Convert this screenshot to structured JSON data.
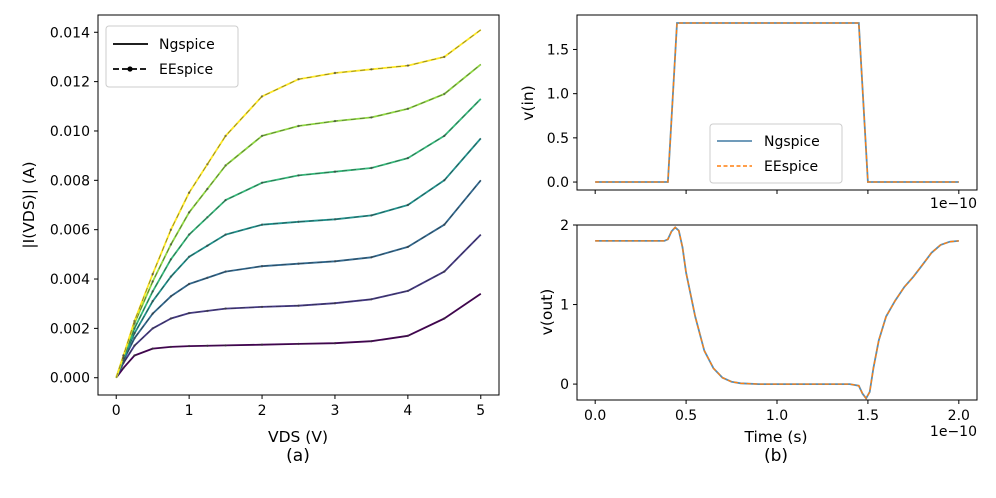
{
  "chart_data": [
    {
      "panel": "(a)",
      "type": "line",
      "xlabel": "VDS (V)",
      "ylabel": "|I(VDS)| (A)",
      "xlim": [
        -0.25,
        5.25
      ],
      "ylim": [
        -0.0007,
        0.0147
      ],
      "xticks": [
        0,
        1,
        2,
        3,
        4,
        5
      ],
      "xtick_labels": [
        "0",
        "1",
        "2",
        "3",
        "4",
        "5"
      ],
      "yticks": [
        0.0,
        0.002,
        0.004,
        0.006,
        0.008,
        0.01,
        0.012,
        0.014
      ],
      "ytick_labels": [
        "0.000",
        "0.002",
        "0.004",
        "0.006",
        "0.008",
        "0.010",
        "0.012",
        "0.014"
      ],
      "legend": {
        "placement": "top-left",
        "entries": [
          "Ngspice",
          "EEspice"
        ]
      },
      "grid": false,
      "x": [
        0,
        0.1,
        0.25,
        0.5,
        0.75,
        1.0,
        1.5,
        2.0,
        2.5,
        3.0,
        3.5,
        4.0,
        4.5,
        5.0
      ],
      "series": [
        {
          "color": "#440154",
          "values": [
            0,
            0.0004,
            0.0009,
            0.00118,
            0.00125,
            0.00128,
            0.00131,
            0.00134,
            0.00137,
            0.0014,
            0.00148,
            0.0017,
            0.0024,
            0.0034
          ]
        },
        {
          "color": "#443983",
          "values": [
            0,
            0.0006,
            0.0013,
            0.002,
            0.0024,
            0.00262,
            0.0028,
            0.00287,
            0.00292,
            0.00302,
            0.00318,
            0.00352,
            0.0043,
            0.0058
          ]
        },
        {
          "color": "#31688e",
          "values": [
            0,
            0.0007,
            0.0016,
            0.0026,
            0.0033,
            0.0038,
            0.0043,
            0.00452,
            0.00462,
            0.00472,
            0.00488,
            0.0053,
            0.0062,
            0.008
          ]
        },
        {
          "color": "#21918c",
          "values": [
            0,
            0.0008,
            0.0018,
            0.0031,
            0.0041,
            0.0049,
            0.0058,
            0.0062,
            0.00632,
            0.00642,
            0.00658,
            0.007,
            0.008,
            0.0097
          ]
        },
        {
          "color": "#35b779",
          "values": [
            0,
            0.0008,
            0.002,
            0.0035,
            0.0048,
            0.0058,
            0.0072,
            0.0079,
            0.0082,
            0.00835,
            0.0085,
            0.0089,
            0.0098,
            0.0113
          ]
        },
        {
          "color": "#90d743",
          "values": [
            0,
            0.0009,
            0.0022,
            0.0039,
            0.0054,
            0.0067,
            0.0086,
            0.0098,
            0.0102,
            0.0104,
            0.01055,
            0.0109,
            0.0115,
            0.0127
          ]
        },
        {
          "color": "#fde725",
          "values": [
            0,
            0.0009,
            0.0023,
            0.0042,
            0.006,
            0.0075,
            0.0098,
            0.0114,
            0.0121,
            0.01235,
            0.0125,
            0.01265,
            0.013,
            0.0141
          ]
        }
      ],
      "eespice_marker_x": [
        0.1,
        0.25,
        0.5,
        0.75,
        1.0,
        1.25,
        1.5,
        2.0,
        2.5,
        3.0,
        3.5,
        4.0,
        4.5
      ]
    },
    {
      "panel": "(b) top",
      "type": "line",
      "xlabel": "",
      "ylabel": "v(in)",
      "xlim": [
        -0.1,
        2.1
      ],
      "ylim": [
        -0.09,
        1.89
      ],
      "xticks": [
        0.0,
        0.5,
        1.0,
        1.5,
        2.0
      ],
      "xtick_labels": [],
      "x_offset_text": "1e−10",
      "yticks": [
        0.0,
        0.5,
        1.0,
        1.5
      ],
      "ytick_labels": [
        "0.0",
        "0.5",
        "1.0",
        "1.5"
      ],
      "legend": {
        "placement": "center",
        "entries": [
          "Ngspice",
          "EEspice"
        ]
      },
      "grid": false,
      "x": [
        0.0,
        0.4,
        0.45,
        1.45,
        1.5,
        2.0
      ],
      "series": [
        {
          "name": "Ngspice",
          "color": "#5b8db0",
          "values": [
            0,
            0,
            1.8,
            1.8,
            0,
            0
          ]
        },
        {
          "name": "EEspice",
          "color": "#ff7f0e",
          "values": [
            0,
            0,
            1.8,
            1.8,
            0,
            0
          ]
        }
      ]
    },
    {
      "panel": "(b) bottom",
      "type": "line",
      "xlabel": "Time (s)",
      "ylabel": "v(out)",
      "xlim": [
        -0.1,
        2.1
      ],
      "ylim": [
        -0.2,
        2.0
      ],
      "xticks": [
        0.0,
        0.5,
        1.0,
        1.5,
        2.0
      ],
      "xtick_labels": [
        "0.0",
        "0.5",
        "1.0",
        "1.5",
        "2.0"
      ],
      "x_offset_text": "1e−10",
      "yticks": [
        0,
        1,
        2
      ],
      "ytick_labels": [
        "0",
        "1",
        "2"
      ],
      "grid": false,
      "x": [
        0.0,
        0.38,
        0.4,
        0.42,
        0.44,
        0.46,
        0.48,
        0.5,
        0.55,
        0.6,
        0.65,
        0.7,
        0.75,
        0.8,
        0.9,
        1.0,
        1.2,
        1.4,
        1.45,
        1.47,
        1.49,
        1.51,
        1.53,
        1.56,
        1.6,
        1.65,
        1.7,
        1.75,
        1.8,
        1.85,
        1.9,
        1.95,
        2.0
      ],
      "series": [
        {
          "name": "Ngspice",
          "color": "#5b8db0",
          "values": [
            1.8,
            1.8,
            1.82,
            1.92,
            1.97,
            1.93,
            1.72,
            1.4,
            0.85,
            0.42,
            0.2,
            0.08,
            0.03,
            0.01,
            0.0,
            0.0,
            0.0,
            0.0,
            -0.02,
            -0.12,
            -0.18,
            -0.1,
            0.2,
            0.55,
            0.85,
            1.05,
            1.22,
            1.35,
            1.5,
            1.65,
            1.75,
            1.79,
            1.8
          ]
        },
        {
          "name": "EEspice",
          "color": "#ff7f0e",
          "values": [
            1.8,
            1.8,
            1.82,
            1.92,
            1.97,
            1.93,
            1.72,
            1.4,
            0.85,
            0.42,
            0.2,
            0.08,
            0.03,
            0.01,
            0.0,
            0.0,
            0.0,
            0.0,
            -0.02,
            -0.12,
            -0.18,
            -0.1,
            0.2,
            0.55,
            0.85,
            1.05,
            1.22,
            1.35,
            1.5,
            1.65,
            1.75,
            1.79,
            1.8
          ]
        }
      ]
    }
  ],
  "captions": {
    "a": "(a)",
    "b": "(b)"
  },
  "legend_a": {
    "solid_label": "Ngspice",
    "marker_label": "EEspice"
  },
  "legend_b": {
    "ngspice_label": "Ngspice",
    "eespice_label": "EEspice"
  }
}
